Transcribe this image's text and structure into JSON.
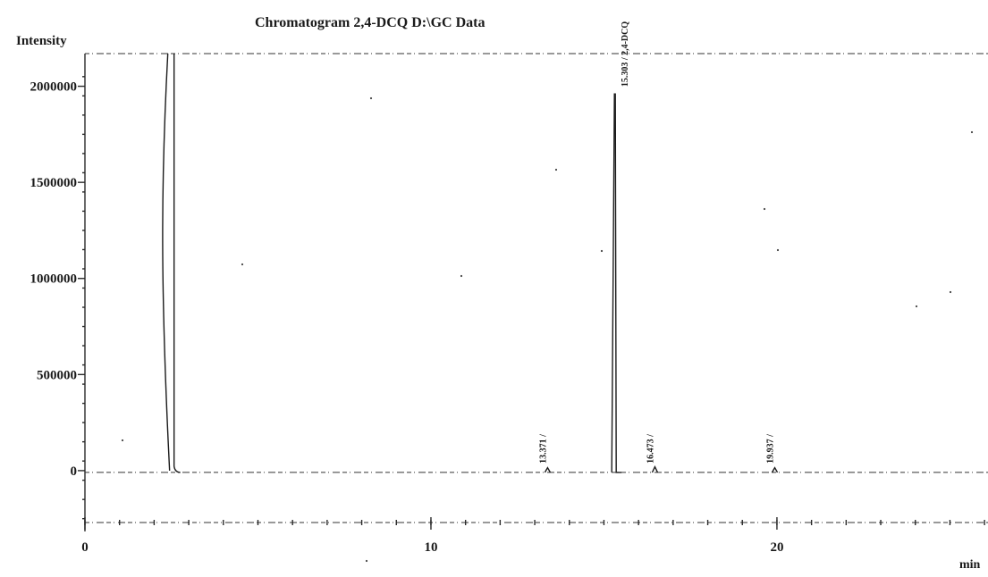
{
  "chart_data": {
    "type": "line",
    "title": "Chromatogram 2,4-DCQ D:\\GC Data",
    "ylabel": "Intensity",
    "xlabel": "min",
    "xlim": [
      0,
      26.1
    ],
    "ylim": [
      -270000,
      2170000
    ],
    "y_ticks": [
      {
        "value": 0,
        "label": "0"
      },
      {
        "value": 500000,
        "label": "500000"
      },
      {
        "value": 1000000,
        "label": "1000000"
      },
      {
        "value": 1500000,
        "label": "1500000"
      },
      {
        "value": 2000000,
        "label": "2000000"
      }
    ],
    "x_ticks": [
      {
        "value": 0,
        "label": "0"
      },
      {
        "value": 10,
        "label": "10"
      },
      {
        "value": 20,
        "label": "20"
      }
    ],
    "peaks": [
      {
        "time": 2.55,
        "height": 2170000,
        "label": ""
      },
      {
        "time": 13.371,
        "height": 15000,
        "label": "13.371 /"
      },
      {
        "time": 15.303,
        "height": 1960000,
        "label": "15.303 / 2,4-DCQ"
      },
      {
        "time": 16.473,
        "height": 20000,
        "label": "16.473 /"
      },
      {
        "time": 19.937,
        "height": 15000,
        "label": "19.937 /"
      }
    ],
    "grid": false,
    "legend": "none"
  }
}
